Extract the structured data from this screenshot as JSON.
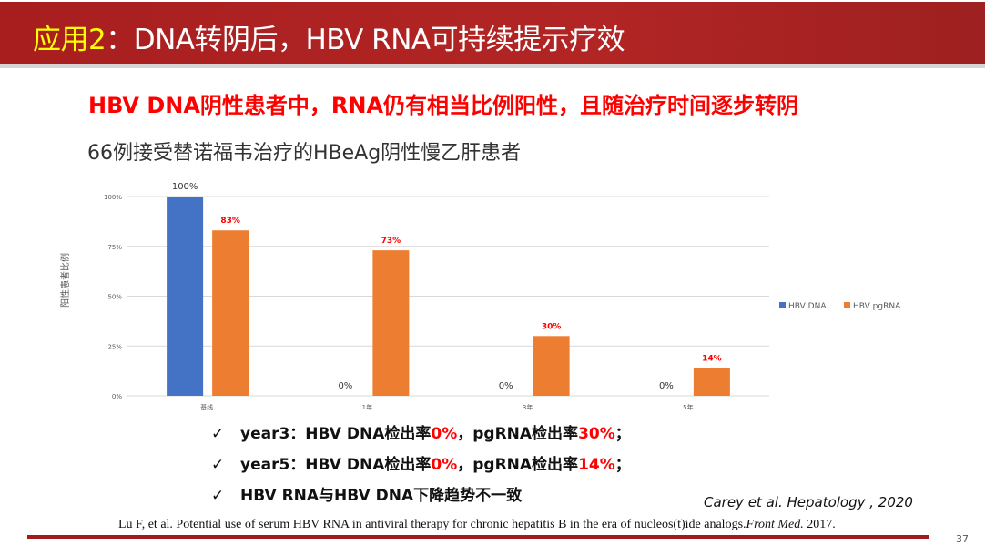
{
  "header": {
    "title_highlight": "应用2",
    "title_rest": "：DNA转阴后，HBV RNA可持续提示疗效"
  },
  "heading": "HBV DNA阴性患者中，RNA仍有相当比例阳性，且随治疗时间逐步转阴",
  "subtitle": "66例接受替诺福韦治疗的HBeAg阴性慢乙肝患者",
  "chart_data": {
    "type": "bar",
    "categories": [
      "基线",
      "1年",
      "3年",
      "5年"
    ],
    "ylabel": "阳性患者比例",
    "ylim": [
      0,
      100
    ],
    "yticks": [
      "0%",
      "25%",
      "50%",
      "75%",
      "100%"
    ],
    "grid": true,
    "legend_position": "right",
    "series": [
      {
        "name": "HBV DNA",
        "values": [
          100,
          0,
          0,
          0
        ],
        "labels": [
          "100%",
          "0%",
          "0%",
          "0%"
        ],
        "color": "#4472c4",
        "label_color": "#333333"
      },
      {
        "name": "HBV pgRNA",
        "values": [
          83,
          73,
          30,
          14
        ],
        "labels": [
          "83%",
          "73%",
          "30%",
          "14%"
        ],
        "color": "#ed7d31",
        "label_color": "#ff0000"
      }
    ]
  },
  "bullets": [
    {
      "check": "✓",
      "pre": "year3：HBV DNA检出率",
      "v1": "0%",
      "mid": "，pgRNA检出率",
      "v2": "30%",
      "post": "；"
    },
    {
      "check": "✓",
      "pre": "year5：HBV DNA检出率",
      "v1": "0%",
      "mid": "，pgRNA检出率",
      "v2": "14%",
      "post": "；"
    },
    {
      "check": "✓",
      "pre": "HBV RNA与HBV DNA下降趋势不一致",
      "v1": "",
      "mid": "",
      "v2": "",
      "post": ""
    }
  ],
  "citation_main": "Carey et al.  Hepatology , 2020",
  "citation_ref_text": "Lu F, et al. Potential use of serum HBV RNA in antiviral therapy for chronic hepatitis B in the era of nucleos(t)ide analogs.",
  "citation_ref_journal": "Front Med.",
  "citation_ref_year": " 2017.",
  "page_number": "37"
}
